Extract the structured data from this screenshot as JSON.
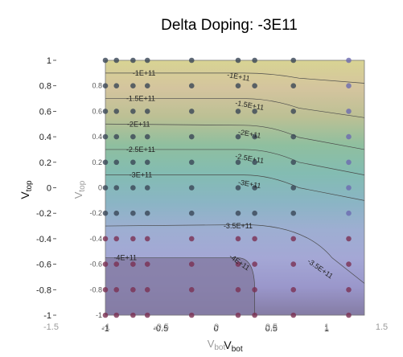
{
  "chart_data": {
    "type": "contour",
    "title": "Delta Doping: -3E11",
    "xlabel": {
      "main": "V",
      "sub": "bot"
    },
    "ylabel": {
      "main": "V",
      "sub": "top"
    },
    "xlim": [
      -1,
      1
    ],
    "ylim": [
      -1,
      1
    ],
    "x_ticks": [
      "-1",
      "-0.5",
      "0",
      "0.5",
      "1"
    ],
    "x_tick_values": [
      -1,
      -0.5,
      0,
      0.5,
      1
    ],
    "y_ticks": [
      "1",
      "0.8",
      "0.6",
      "0.4",
      "0.2",
      "0",
      "-0.2",
      "-0.4",
      "-0.6",
      "-0.8",
      "-1"
    ],
    "y_tick_values": [
      1,
      0.8,
      0.6,
      0.4,
      0.2,
      0,
      -0.2,
      -0.4,
      -0.6,
      -0.8,
      -1
    ],
    "ghost_x_ticks": [
      "-1.5",
      "-1",
      "-0.5",
      "0",
      "0.5",
      "1",
      "1.5"
    ],
    "ghost_x_tick_values": [
      -1.5,
      -1,
      -0.5,
      0,
      0.5,
      1,
      1.5
    ],
    "inner_y_ticks": [
      "0.8",
      "0.6",
      "0.4",
      "0.2",
      "0",
      "-0.2",
      "-0.4",
      "-0.6",
      "-0.8",
      "-1"
    ],
    "inner_y_tick_values": [
      0.8,
      0.6,
      0.4,
      0.2,
      0,
      -0.2,
      -0.4,
      -0.6,
      -0.8,
      -1
    ],
    "grid_x": [
      -1,
      -0.9,
      -0.75,
      -0.62,
      -0.22,
      0.2,
      0.35,
      0.7,
      1.2
    ],
    "grid_y": [
      1,
      0.8,
      0.6,
      0.4,
      0.2,
      0,
      -0.2,
      -0.4,
      -0.6,
      -0.8,
      -1
    ],
    "contour_levels": [
      {
        "label": "-1E+11",
        "y_left": 0.9,
        "y_mid": 0.9,
        "y_right": 0.82,
        "label_x": [
          -0.65,
          0.2
        ]
      },
      {
        "label": "-1.5E+11",
        "y_left": 0.7,
        "y_mid": 0.7,
        "y_right": 0.55,
        "label_x": [
          -0.68,
          0.3
        ]
      },
      {
        "label": "-2E+11",
        "y_left": 0.5,
        "y_mid": 0.49,
        "y_right": 0.3,
        "label_x": [
          -0.7,
          0.3
        ]
      },
      {
        "label": "-2.5E+11",
        "y_left": 0.3,
        "y_mid": 0.3,
        "y_right": 0.1,
        "label_x": [
          -0.68,
          0.3
        ]
      },
      {
        "label": "-3E+11",
        "y_left": 0.1,
        "y_mid": 0.1,
        "y_right": -0.1,
        "label_x": [
          -0.68,
          0.3
        ]
      },
      {
        "label": "-3.5E+11",
        "y_left": -0.3,
        "y_mid": -0.29,
        "y_right": -0.75,
        "label_x": [
          0.2,
          0.93
        ]
      },
      {
        "label": "-4E+11",
        "y_left": -0.55,
        "y_mid": -0.55,
        "y_right": -1.0,
        "label_x": [
          -0.82,
          0.2
        ]
      }
    ],
    "colormap": [
      "#857ca4",
      "#9a97cb",
      "#a4a7d5",
      "#9eaed2",
      "#8ab5c4",
      "#83bcb2",
      "#8fbf9f",
      "#bcc094",
      "#d4c49e",
      "#d8d493"
    ],
    "legend": "none",
    "grid": false
  }
}
